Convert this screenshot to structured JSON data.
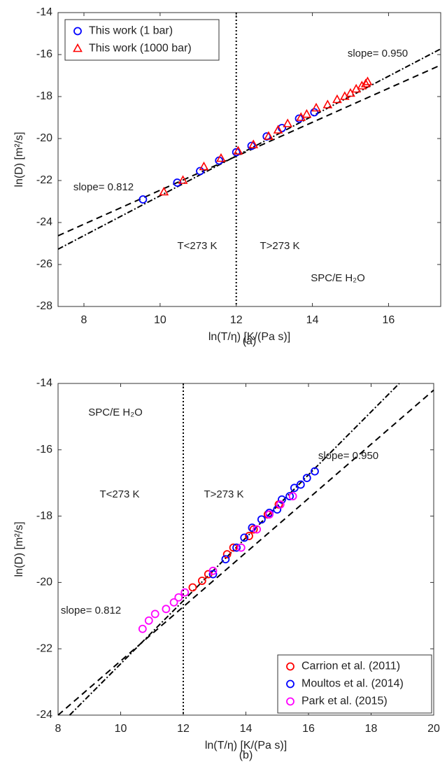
{
  "chart_data": [
    {
      "type": "scatter",
      "caption": "(a)",
      "xlabel": "ln(T/η) [K/(Pa s)]",
      "ylabel": "ln(D) [m²/s]",
      "xlim": [
        7.32,
        17.37
      ],
      "ylim": [
        -28,
        -14
      ],
      "xticks": [
        8,
        10,
        12,
        14,
        16
      ],
      "yticks": [
        -28,
        -26,
        -24,
        -22,
        -20,
        -18,
        -16,
        -14
      ],
      "vline": 12,
      "legend": "upper left",
      "annotations": [
        "slope= 0.950",
        "slope= 0.812",
        "T<273 K",
        "T>273 K",
        "SPC/E H₂O"
      ],
      "series": [
        {
          "name": "This work (1 bar)",
          "marker": "circle",
          "color": "#0000ff",
          "x": [
            9.55,
            10.45,
            11.05,
            11.55,
            12.0,
            12.4,
            12.8,
            13.2,
            13.65,
            14.05
          ],
          "values": [
            -22.9,
            -22.1,
            -21.55,
            -21.05,
            -20.65,
            -20.35,
            -19.9,
            -19.5,
            -19.05,
            -18.75
          ]
        },
        {
          "name": "This work (1000 bar)",
          "marker": "triangle",
          "color": "#ff0000",
          "x": [
            10.1,
            10.6,
            11.15,
            11.6,
            12.05,
            12.45,
            12.85,
            13.1,
            13.35,
            13.7,
            13.85,
            14.1,
            14.4,
            14.65,
            14.85,
            15.0,
            15.15,
            15.3,
            15.4,
            15.45
          ],
          "values": [
            -22.55,
            -22.0,
            -21.35,
            -20.95,
            -20.6,
            -20.3,
            -19.9,
            -19.6,
            -19.3,
            -19.0,
            -18.85,
            -18.55,
            -18.4,
            -18.15,
            -18.0,
            -17.85,
            -17.65,
            -17.5,
            -17.4,
            -17.3
          ]
        }
      ],
      "lines": [
        {
          "style": "dashed",
          "x": [
            7.32,
            17.37
          ],
          "values": [
            -24.63,
            -16.5
          ]
        },
        {
          "style": "dashdot",
          "x": [
            7.32,
            17.37
          ],
          "values": [
            -25.27,
            -15.73
          ]
        }
      ]
    },
    {
      "type": "scatter",
      "caption": "(b)",
      "xlabel": "ln(T/η) [K/(Pa s)]",
      "ylabel": "ln(D) [m²/s]",
      "xlim": [
        8,
        20
      ],
      "ylim": [
        -24,
        -14
      ],
      "xticks": [
        8,
        10,
        12,
        14,
        16,
        18,
        20
      ],
      "yticks": [
        -24,
        -22,
        -20,
        -18,
        -16,
        -14
      ],
      "vline": 12,
      "legend": "lower right",
      "annotations": [
        "SPC/E H₂O",
        "slope= 0.950",
        "T<273 K",
        "T>273 K",
        "slope= 0.812"
      ],
      "series": [
        {
          "name": "Carrion et al. (2011)",
          "marker": "circle",
          "color": "#ff0000",
          "x": [
            12.3,
            12.6,
            12.8,
            13.4,
            13.6,
            14.1,
            14.25,
            14.7,
            15.05
          ],
          "values": [
            -20.15,
            -19.95,
            -19.75,
            -19.15,
            -18.95,
            -18.6,
            -18.4,
            -17.95,
            -17.65
          ]
        },
        {
          "name": "Moultos et al. (2014)",
          "marker": "circle",
          "color": "#0000ff",
          "x": [
            12.95,
            13.35,
            13.7,
            13.95,
            14.2,
            14.5,
            14.75,
            15.0,
            15.15,
            15.4,
            15.55,
            15.75,
            15.95,
            16.2
          ],
          "values": [
            -19.75,
            -19.3,
            -18.95,
            -18.65,
            -18.35,
            -18.1,
            -17.9,
            -17.8,
            -17.5,
            -17.4,
            -17.15,
            -17.05,
            -16.85,
            -16.65
          ]
        },
        {
          "name": "Park et al. (2015)",
          "marker": "circle",
          "color": "#ff00ff",
          "x": [
            10.7,
            10.9,
            11.1,
            11.45,
            11.7,
            11.85,
            12.05,
            12.95,
            13.85,
            14.35,
            14.75,
            15.1,
            15.5
          ],
          "values": [
            -21.4,
            -21.15,
            -20.95,
            -20.8,
            -20.6,
            -20.45,
            -20.3,
            -19.65,
            -18.95,
            -18.4,
            -17.95,
            -17.65,
            -17.4
          ]
        }
      ],
      "lines": [
        {
          "style": "dashed",
          "x": [
            8,
            20
          ],
          "values": [
            -24,
            -14.2
          ]
        },
        {
          "style": "dashdot",
          "x": [
            8.37,
            18.9
          ],
          "values": [
            -24,
            -14
          ]
        }
      ]
    }
  ]
}
